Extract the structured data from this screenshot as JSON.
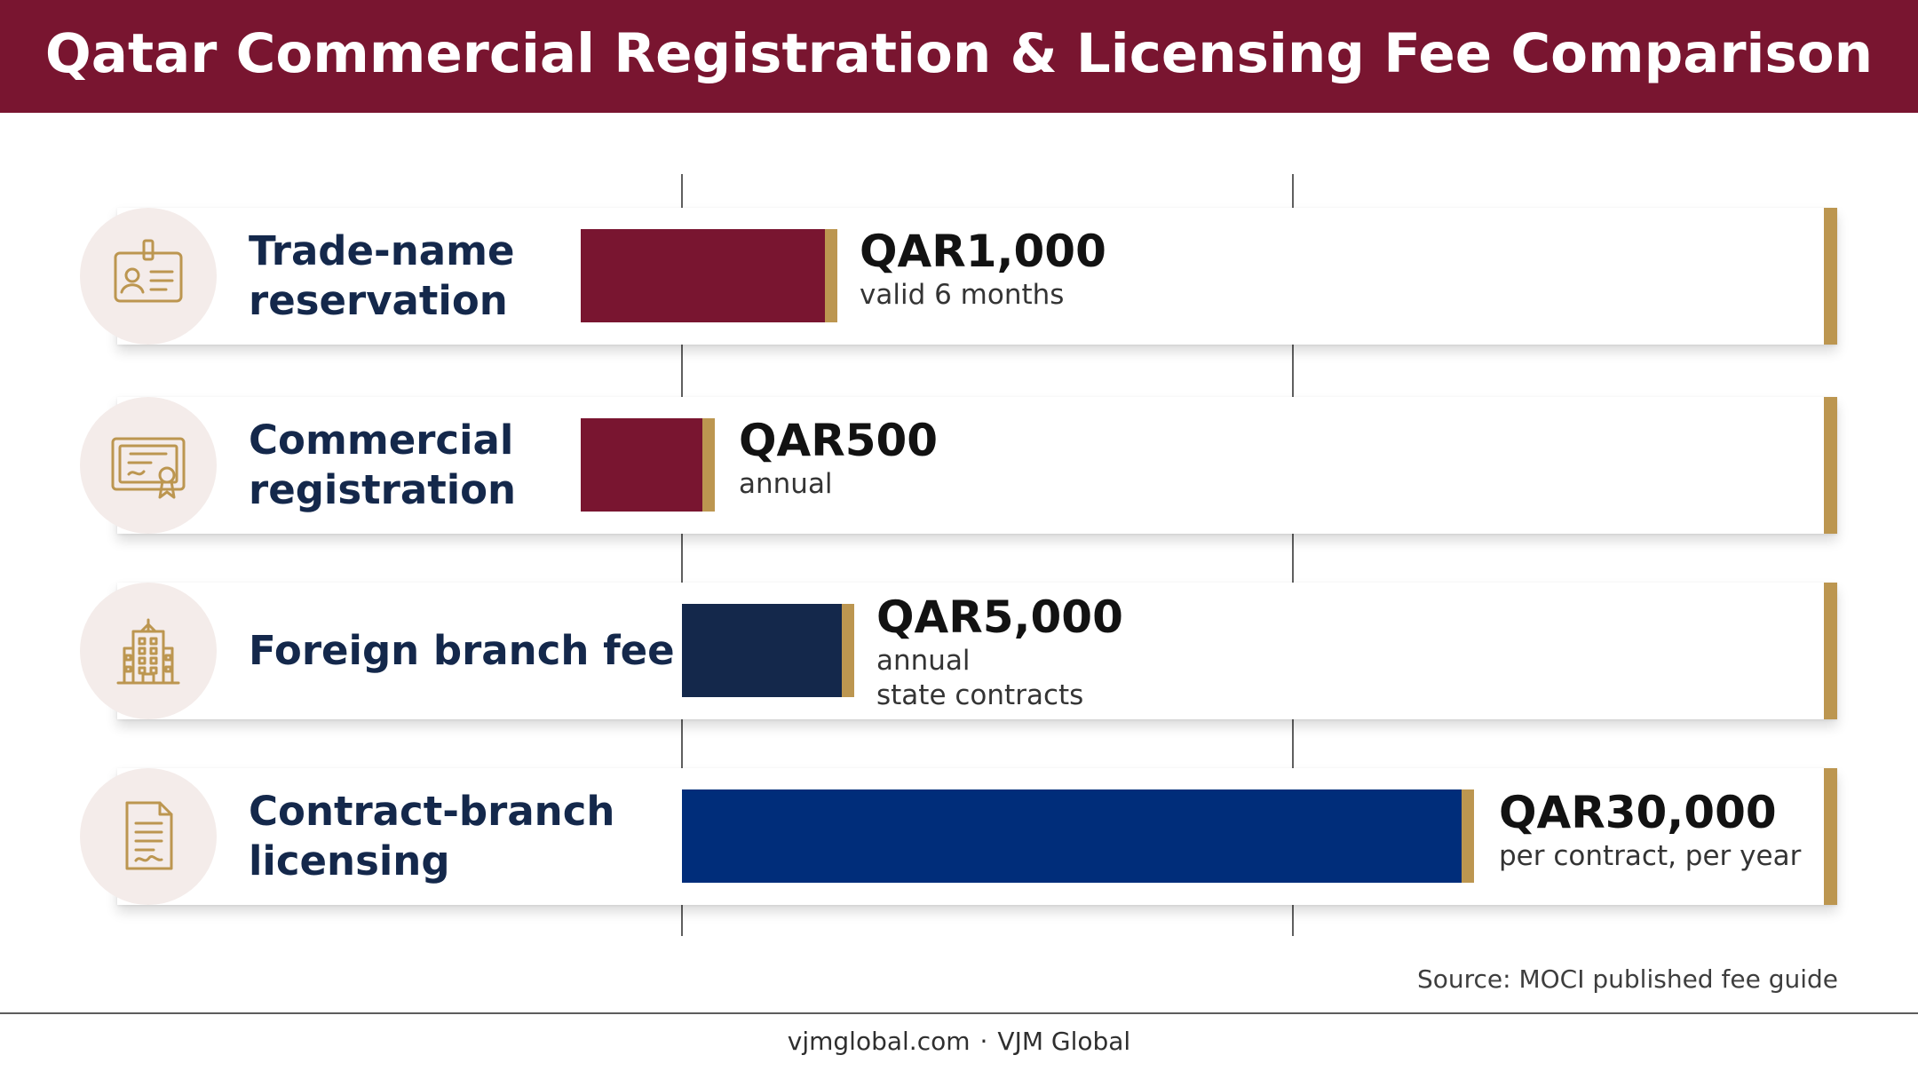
{
  "header": {
    "title": "Qatar Commercial Registration & Licensing Fee Comparison"
  },
  "chart_data": {
    "type": "bar",
    "orientation": "horizontal",
    "title": "Qatar Commercial Registration & Licensing Fee Comparison",
    "currency": "QAR",
    "grid": true,
    "categories": [
      "Trade-name reservation",
      "Commercial registration",
      "Foreign branch fee",
      "Contract-branch licensing"
    ],
    "values": [
      1000,
      500,
      5000,
      30000
    ],
    "items": [
      {
        "label": "Trade-name reservation",
        "value": 1000,
        "value_label": "QAR1,000",
        "notes": [
          "valid 6 months"
        ],
        "color": "#791530",
        "icon": "id-badge-icon"
      },
      {
        "label": "Commercial registration",
        "value": 500,
        "value_label": "QAR500",
        "notes": [
          "annual"
        ],
        "color": "#791530",
        "icon": "certificate-icon"
      },
      {
        "label": "Foreign branch fee",
        "value": 5000,
        "value_label": "QAR5,000",
        "notes": [
          "annual",
          "state contracts"
        ],
        "color": "#14284b",
        "icon": "office-building-icon"
      },
      {
        "label": "Contract-branch licensing",
        "value": 30000,
        "value_label": "QAR30,000",
        "notes": [
          "per contract, per year"
        ],
        "color": "#002d7a",
        "icon": "contract-document-icon"
      }
    ],
    "colors": {
      "burgundy": "#791530",
      "navy": "#14284b",
      "blue": "#002d7a",
      "gold": "#bc9650"
    }
  },
  "source": "Source: MOCI published fee guide",
  "footer": {
    "website": "vjmglobal.com",
    "separator": "·",
    "brand": "VJM Global"
  }
}
